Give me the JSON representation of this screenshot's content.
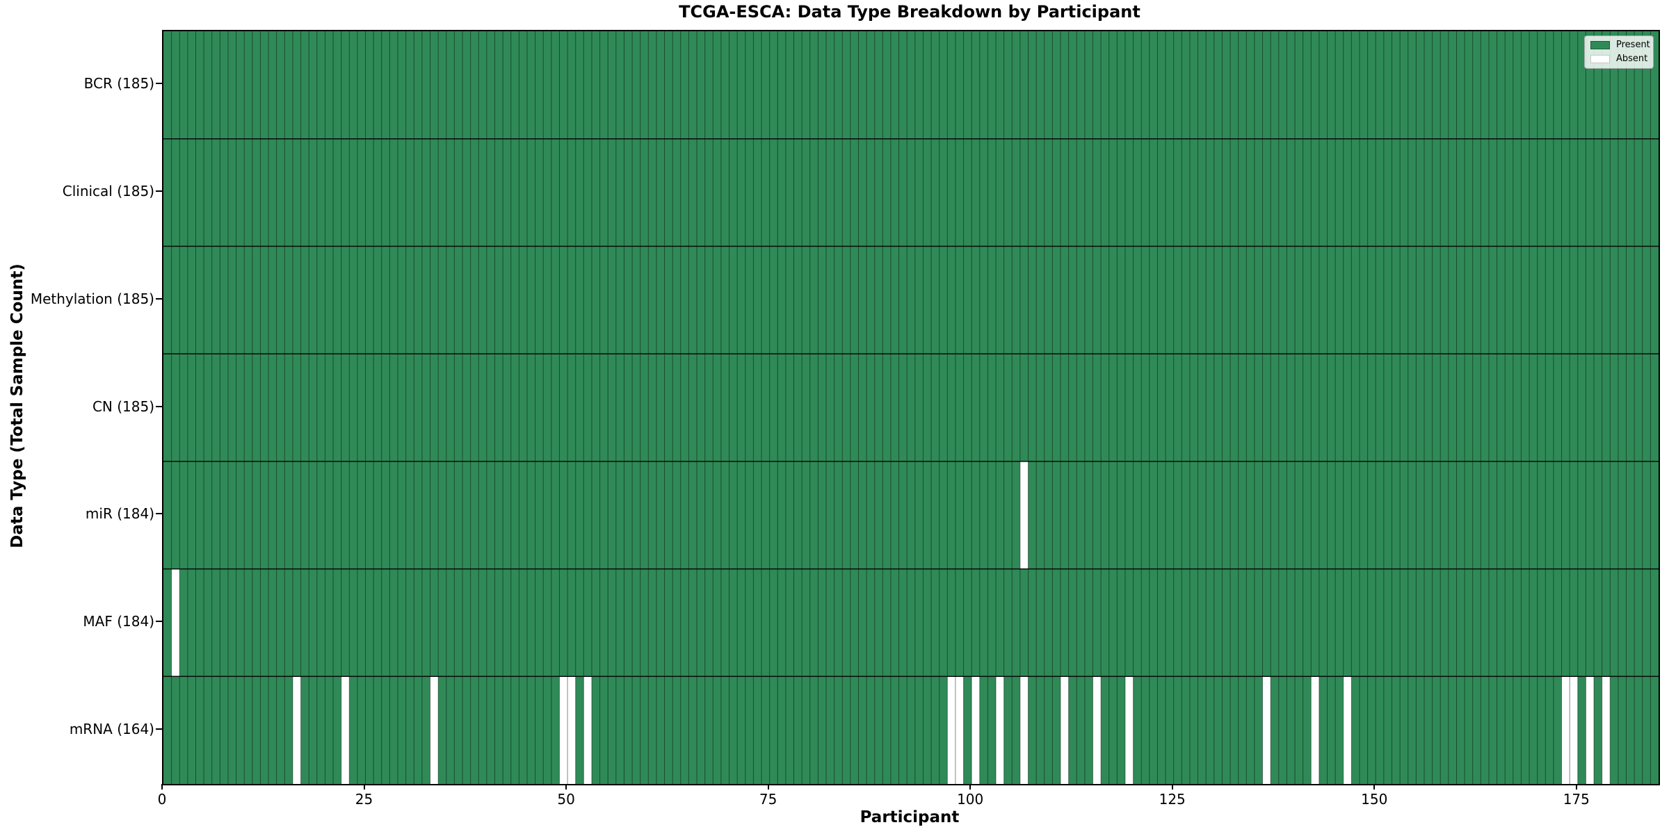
{
  "title": "TCGA-ESCA: Data Type Breakdown by Participant",
  "xlabel": "Participant",
  "ylabel": "Data Type (Total Sample Count)",
  "legend": {
    "present_label": "Present",
    "absent_label": "Absent"
  },
  "colors": {
    "present": "#2f8a57",
    "absent": "#ffffff",
    "cell_edge": "rgba(0,0,0,0.45)",
    "row_divider": "#0a0a0a",
    "frame": "#000000",
    "legend_present_border": "#1f5c3a",
    "legend_absent_border": "#c8c8c8"
  },
  "chart_data": {
    "type": "heatmap",
    "title": "TCGA-ESCA: Data Type Breakdown by Participant",
    "xlabel": "Participant",
    "ylabel": "Data Type (Total Sample Count)",
    "n_participants": 185,
    "x_ticks": [
      0,
      25,
      50,
      75,
      100,
      125,
      150,
      175
    ],
    "legend_position": "upper right",
    "legend_entries": [
      {
        "label": "Present",
        "color": "#2f8a57"
      },
      {
        "label": "Absent",
        "color": "#ffffff"
      }
    ],
    "values_meaning": "1 = data present for participant (green), 0 = absent (white)",
    "rows": [
      {
        "label": "BCR (185)",
        "data_type": "BCR",
        "total": 185,
        "absent_participants": []
      },
      {
        "label": "Clinical (185)",
        "data_type": "Clinical",
        "total": 185,
        "absent_participants": []
      },
      {
        "label": "Methylation (185)",
        "data_type": "Methylation",
        "total": 185,
        "absent_participants": []
      },
      {
        "label": "CN (185)",
        "data_type": "CN",
        "total": 185,
        "absent_participants": []
      },
      {
        "label": "miR (184)",
        "data_type": "miR",
        "total": 184,
        "absent_participants": [
          106
        ]
      },
      {
        "label": "MAF (184)",
        "data_type": "MAF",
        "total": 184,
        "absent_participants": [
          1
        ]
      },
      {
        "label": "mRNA (164)",
        "data_type": "mRNA",
        "total": 164,
        "absent_participants": [
          16,
          22,
          33,
          49,
          50,
          52,
          97,
          98,
          100,
          103,
          106,
          111,
          115,
          119,
          136,
          142,
          146,
          173,
          174,
          176,
          178
        ]
      }
    ]
  }
}
